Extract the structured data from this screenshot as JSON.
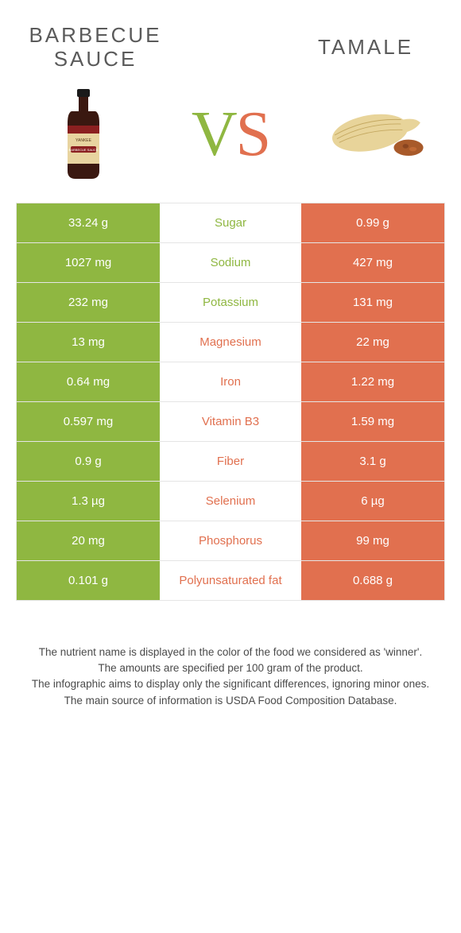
{
  "left": {
    "title": "Barbecue sauce"
  },
  "right": {
    "title": "Tamale"
  },
  "colors": {
    "green": "#8fb741",
    "orange": "#e1704f",
    "rowBorder": "#e5e5e5",
    "white": "#ffffff"
  },
  "rows": [
    {
      "left": "33.24 g",
      "label": "Sugar",
      "right": "0.99 g",
      "winner": "left"
    },
    {
      "left": "1027 mg",
      "label": "Sodium",
      "right": "427 mg",
      "winner": "left"
    },
    {
      "left": "232 mg",
      "label": "Potassium",
      "right": "131 mg",
      "winner": "left"
    },
    {
      "left": "13 mg",
      "label": "Magnesium",
      "right": "22 mg",
      "winner": "right"
    },
    {
      "left": "0.64 mg",
      "label": "Iron",
      "right": "1.22 mg",
      "winner": "right"
    },
    {
      "left": "0.597 mg",
      "label": "Vitamin B3",
      "right": "1.59 mg",
      "winner": "right"
    },
    {
      "left": "0.9 g",
      "label": "Fiber",
      "right": "3.1 g",
      "winner": "right"
    },
    {
      "left": "1.3 µg",
      "label": "Selenium",
      "right": "6 µg",
      "winner": "right"
    },
    {
      "left": "20 mg",
      "label": "Phosphorus",
      "right": "99 mg",
      "winner": "right"
    },
    {
      "left": "0.101 g",
      "label": "Polyunsaturated fat",
      "right": "0.688 g",
      "winner": "right"
    }
  ],
  "footer": {
    "line1": "The nutrient name is displayed in the color of the food we considered as 'winner'.",
    "line2": "The amounts are specified per 100 gram of the product.",
    "line3": "The infographic aims to display only the significant differences, ignoring minor ones.",
    "line4": "The main source of information is USDA Food Composition Database."
  }
}
